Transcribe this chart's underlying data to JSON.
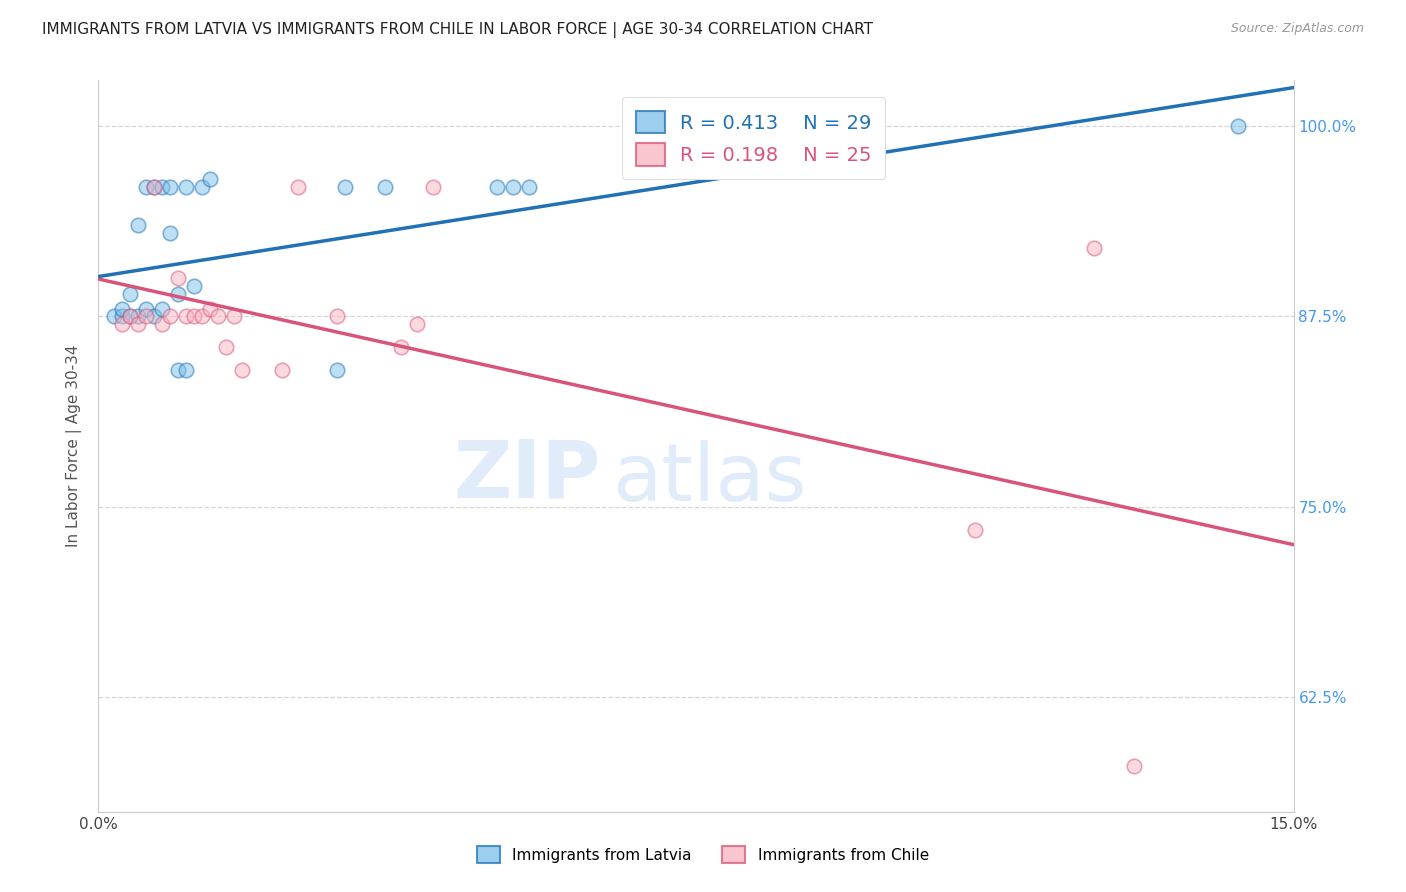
{
  "title": "IMMIGRANTS FROM LATVIA VS IMMIGRANTS FROM CHILE IN LABOR FORCE | AGE 30-34 CORRELATION CHART",
  "source": "Source: ZipAtlas.com",
  "ylabel": "In Labor Force | Age 30-34",
  "xlim": [
    0.0,
    0.15
  ],
  "ylim": [
    0.55,
    1.03
  ],
  "yticks": [
    0.625,
    0.75,
    0.875,
    1.0
  ],
  "ytick_labels": [
    "62.5%",
    "75.0%",
    "87.5%",
    "100.0%"
  ],
  "xticks": [
    0.0,
    0.05,
    0.1,
    0.15
  ],
  "xtick_labels": [
    "0.0%",
    "",
    "",
    "15.0%"
  ],
  "latvia_x": [
    0.002,
    0.003,
    0.003,
    0.004,
    0.004,
    0.005,
    0.005,
    0.006,
    0.006,
    0.007,
    0.007,
    0.008,
    0.008,
    0.009,
    0.009,
    0.01,
    0.01,
    0.011,
    0.011,
    0.012,
    0.013,
    0.014,
    0.03,
    0.031,
    0.036,
    0.05,
    0.052,
    0.054,
    0.143
  ],
  "latvia_y": [
    0.875,
    0.875,
    0.88,
    0.875,
    0.89,
    0.875,
    0.935,
    0.88,
    0.96,
    0.875,
    0.96,
    0.88,
    0.96,
    0.93,
    0.96,
    0.84,
    0.89,
    0.84,
    0.96,
    0.895,
    0.96,
    0.965,
    0.84,
    0.96,
    0.96,
    0.96,
    0.96,
    0.96,
    1.0
  ],
  "chile_x": [
    0.003,
    0.004,
    0.005,
    0.006,
    0.007,
    0.008,
    0.009,
    0.01,
    0.011,
    0.012,
    0.013,
    0.014,
    0.015,
    0.016,
    0.017,
    0.018,
    0.023,
    0.025,
    0.03,
    0.038,
    0.04,
    0.042,
    0.11,
    0.125,
    0.13
  ],
  "chile_y": [
    0.87,
    0.875,
    0.87,
    0.875,
    0.96,
    0.87,
    0.875,
    0.9,
    0.875,
    0.875,
    0.875,
    0.88,
    0.875,
    0.855,
    0.875,
    0.84,
    0.84,
    0.96,
    0.875,
    0.855,
    0.87,
    0.96,
    0.735,
    0.92,
    0.58
  ],
  "latvia_R": 0.413,
  "latvia_N": 29,
  "chile_R": 0.198,
  "chile_N": 25,
  "latvia_color": "#7bc0e8",
  "chile_color": "#f8b4c0",
  "latvia_line_color": "#2171b5",
  "chile_line_color": "#d9547a",
  "dot_size": 110,
  "dot_alpha": 0.5,
  "dot_linewidth": 1.2,
  "bg_color": "#ffffff",
  "grid_color": "#cccccc",
  "title_color": "#222222",
  "axis_label_color": "#555555",
  "ytick_color": "#4499ee",
  "watermark_color": "#d8eaff",
  "watermark_alpha": 0.55
}
